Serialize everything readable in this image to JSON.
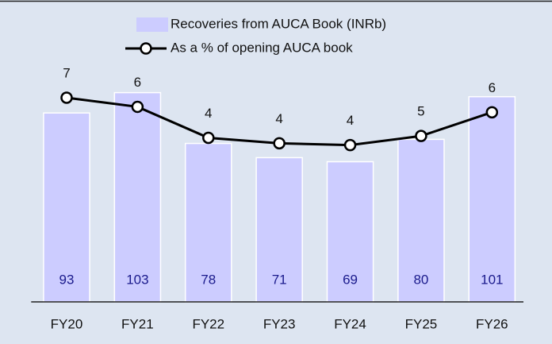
{
  "chart_data": {
    "type": "bar_line",
    "categories": [
      "FY20",
      "FY21",
      "FY22",
      "FY23",
      "FY24",
      "FY25",
      "FY26"
    ],
    "series": [
      {
        "name": "Recoveries from AUCA Book (INRb)",
        "type": "bar",
        "color": "#ccccff",
        "label_color": "#1a1a8c",
        "values": [
          93,
          103,
          78,
          71,
          69,
          80,
          101
        ]
      },
      {
        "name": "As a % of opening AUCA book",
        "type": "line",
        "axis": "y2",
        "color": "#000000",
        "values": [
          6.6,
          6.1,
          4.4,
          4.1,
          4.0,
          4.5,
          5.8
        ],
        "value_labels": [
          "7",
          "6",
          "4",
          "4",
          "4",
          "5",
          "6"
        ]
      }
    ],
    "ylim": [
      0,
      140
    ],
    "y2lim": [
      -4.6,
      11
    ],
    "legend": "top"
  }
}
